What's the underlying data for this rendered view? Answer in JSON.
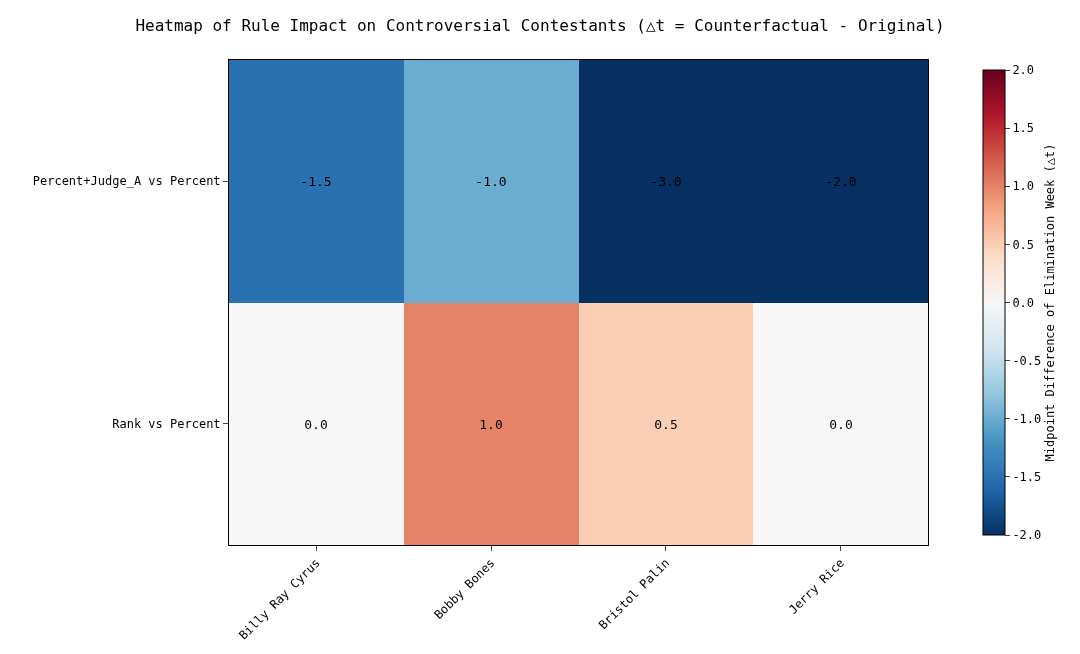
{
  "chart_data": {
    "type": "heatmap",
    "title": "Heatmap of Rule Impact on Controversial Contestants (△t = Counterfactual - Original)",
    "categories": [
      "Billy Ray Cyrus",
      "Bobby Bones",
      "Bristol Palin",
      "Jerry Rice"
    ],
    "y_categories": [
      "Percent+Judge_A vs Percent",
      "Rank vs Percent"
    ],
    "cells": [
      [
        -1.5,
        -1.0,
        -3.0,
        -2.0
      ],
      [
        0.0,
        1.0,
        0.5,
        0.0
      ]
    ],
    "cell_labels": [
      [
        "-1.5",
        "-1.0",
        "-3.0",
        "-2.0"
      ],
      [
        "0.0",
        "1.0",
        "0.5",
        "0.0"
      ]
    ],
    "clabel": "Midpoint Difference of Elimination Week (△t)",
    "clim": [
      -2.0,
      2.0
    ],
    "cticks": [
      {
        "value": -2.0,
        "label": "-2.0"
      },
      {
        "value": -1.5,
        "label": "-1.5"
      },
      {
        "value": -1.0,
        "label": "-1.0"
      },
      {
        "value": -0.5,
        "label": "-0.5"
      },
      {
        "value": 0.0,
        "label": "0.0"
      },
      {
        "value": 0.5,
        "label": "0.5"
      },
      {
        "value": 1.0,
        "label": "1.0"
      },
      {
        "value": 1.5,
        "label": "1.5"
      },
      {
        "value": 2.0,
        "label": "2.0"
      }
    ]
  }
}
